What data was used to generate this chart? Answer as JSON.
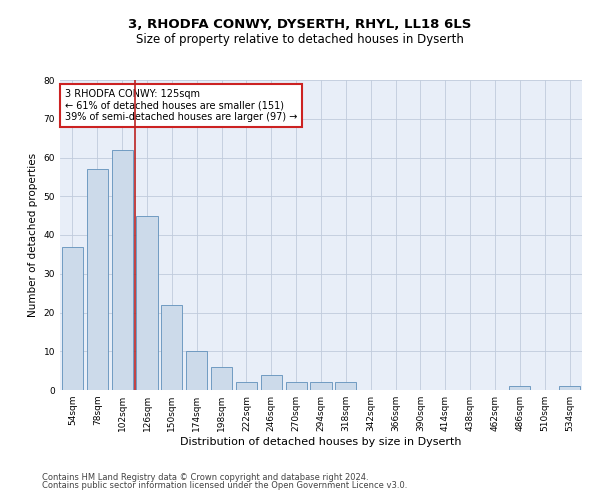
{
  "title": "3, RHODFA CONWY, DYSERTH, RHYL, LL18 6LS",
  "subtitle": "Size of property relative to detached houses in Dyserth",
  "xlabel": "Distribution of detached houses by size in Dyserth",
  "ylabel": "Number of detached properties",
  "categories": [
    "54sqm",
    "78sqm",
    "102sqm",
    "126sqm",
    "150sqm",
    "174sqm",
    "198sqm",
    "222sqm",
    "246sqm",
    "270sqm",
    "294sqm",
    "318sqm",
    "342sqm",
    "366sqm",
    "390sqm",
    "414sqm",
    "438sqm",
    "462sqm",
    "486sqm",
    "510sqm",
    "534sqm"
  ],
  "values": [
    37,
    57,
    62,
    45,
    22,
    10,
    6,
    2,
    4,
    2,
    2,
    2,
    0,
    0,
    0,
    0,
    0,
    0,
    1,
    0,
    1
  ],
  "bar_color": "#ccdaea",
  "bar_edge_color": "#6090bb",
  "highlight_line_color": "#bb2222",
  "annotation_text": "3 RHODFA CONWY: 125sqm\n← 61% of detached houses are smaller (151)\n39% of semi-detached houses are larger (97) →",
  "annotation_box_color": "#cc2222",
  "ylim": [
    0,
    80
  ],
  "yticks": [
    0,
    10,
    20,
    30,
    40,
    50,
    60,
    70,
    80
  ],
  "grid_color": "#c0cbdc",
  "bg_color": "#e8eef8",
  "footer1": "Contains HM Land Registry data © Crown copyright and database right 2024.",
  "footer2": "Contains public sector information licensed under the Open Government Licence v3.0.",
  "title_fontsize": 9.5,
  "subtitle_fontsize": 8.5,
  "xlabel_fontsize": 8,
  "ylabel_fontsize": 7.5,
  "tick_fontsize": 6.5,
  "annotation_fontsize": 7,
  "footer_fontsize": 6
}
